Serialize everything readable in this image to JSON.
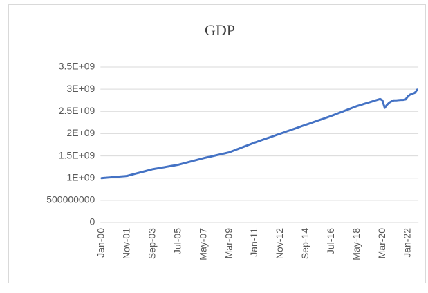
{
  "chart_data": {
    "type": "line",
    "title": "GDP",
    "categories": [
      "Jan-00",
      null,
      null,
      null,
      null,
      null,
      null,
      null,
      null,
      null,
      null,
      "Nov-01",
      null,
      null,
      null,
      null,
      null,
      null,
      null,
      null,
      null,
      null,
      "Sep-03",
      null,
      null,
      null,
      null,
      null,
      null,
      null,
      null,
      null,
      null,
      "Jul-05",
      null,
      null,
      null,
      null,
      null,
      null,
      null,
      null,
      null,
      null,
      "May-07",
      null,
      null,
      null,
      null,
      null,
      null,
      null,
      null,
      null,
      null,
      "Mar-09",
      null,
      null,
      null,
      null,
      null,
      null,
      null,
      null,
      null,
      null,
      "Jan-11",
      null,
      null,
      null,
      null,
      null,
      null,
      null,
      null,
      null,
      null,
      "Nov-12",
      null,
      null,
      null,
      null,
      null,
      null,
      null,
      null,
      null,
      null,
      "Sep-14",
      null,
      null,
      null,
      null,
      null,
      null,
      null,
      null,
      null,
      null,
      "Jul-16",
      null,
      null,
      null,
      null,
      null,
      null,
      null,
      null,
      null,
      null,
      "May-18",
      null,
      null,
      null,
      null,
      null,
      null,
      null,
      null,
      null,
      null,
      "Mar-20",
      null,
      null,
      null,
      null,
      null,
      null,
      null,
      null,
      null,
      null,
      "Jan-22",
      null,
      null,
      null,
      null
    ],
    "series": [
      {
        "name": "GDP",
        "color": "#4472c4",
        "values": [
          1000000000,
          1005000000,
          1009000000,
          1014000000,
          1018000000,
          1023000000,
          1027000000,
          1032000000,
          1036000000,
          1041000000,
          1045000000,
          1050000000,
          1064000000,
          1077000000,
          1091000000,
          1105000000,
          1118000000,
          1132000000,
          1145000000,
          1159000000,
          1173000000,
          1186000000,
          1200000000,
          1209000000,
          1218000000,
          1227000000,
          1236000000,
          1245000000,
          1255000000,
          1264000000,
          1273000000,
          1282000000,
          1291000000,
          1300000000,
          1314000000,
          1327000000,
          1341000000,
          1355000000,
          1368000000,
          1382000000,
          1395000000,
          1409000000,
          1423000000,
          1436000000,
          1450000000,
          1462000000,
          1474000000,
          1485000000,
          1497000000,
          1509000000,
          1521000000,
          1533000000,
          1545000000,
          1556000000,
          1568000000,
          1580000000,
          1600000000,
          1620000000,
          1640000000,
          1660000000,
          1680000000,
          1700000000,
          1720000000,
          1740000000,
          1760000000,
          1780000000,
          1800000000,
          1818000000,
          1836000000,
          1855000000,
          1873000000,
          1891000000,
          1909000000,
          1927000000,
          1945000000,
          1964000000,
          1982000000,
          2000000000,
          2018000000,
          2036000000,
          2055000000,
          2073000000,
          2091000000,
          2109000000,
          2127000000,
          2145000000,
          2164000000,
          2182000000,
          2200000000,
          2218000000,
          2236000000,
          2255000000,
          2273000000,
          2291000000,
          2309000000,
          2327000000,
          2345000000,
          2364000000,
          2382000000,
          2400000000,
          2420000000,
          2440000000,
          2460000000,
          2480000000,
          2500000000,
          2520000000,
          2540000000,
          2560000000,
          2580000000,
          2600000000,
          2620000000,
          2636000000,
          2652000000,
          2668000000,
          2684000000,
          2700000000,
          2716000000,
          2732000000,
          2748000000,
          2764000000,
          2780000000,
          2750000000,
          2580000000,
          2650000000,
          2700000000,
          2730000000,
          2750000000,
          2750000000,
          2755000000,
          2760000000,
          2760000000,
          2770000000,
          2840000000,
          2880000000,
          2900000000,
          2920000000,
          2990000000
        ]
      }
    ],
    "ylim": [
      0,
      3500000000
    ],
    "yticks": [
      0,
      500000000,
      {
        "value": 1000000000,
        "label": "1E+09"
      },
      {
        "value": 1500000000,
        "label": "1.5E+09"
      },
      {
        "value": 2000000000,
        "label": "2E+09"
      },
      {
        "value": 2500000000,
        "label": "2.5E+09"
      },
      {
        "value": 3000000000,
        "label": "3E+09"
      },
      {
        "value": 3500000000,
        "label": "3.5E+09"
      }
    ],
    "grid": true
  }
}
